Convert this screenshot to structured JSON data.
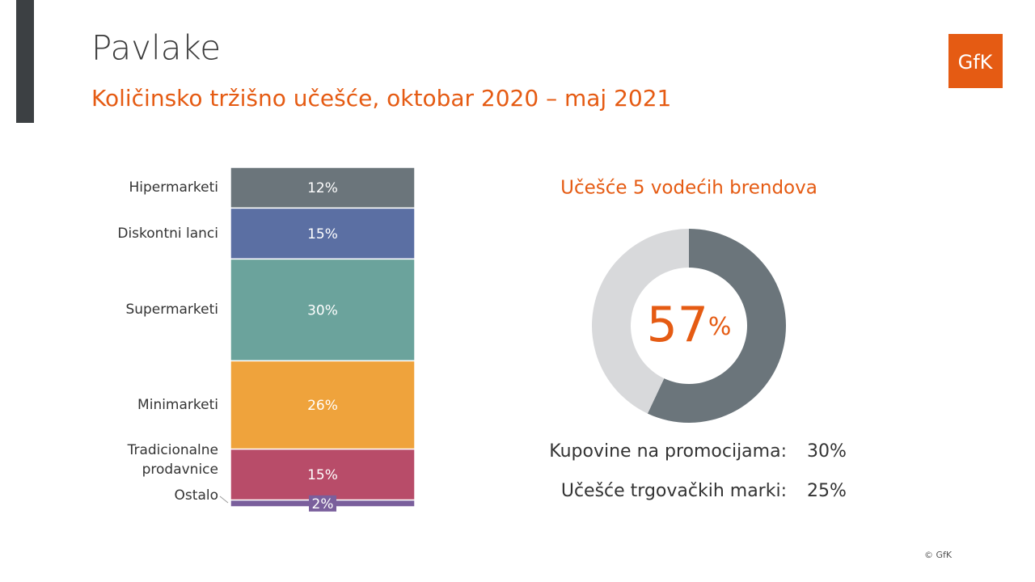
{
  "header": {
    "title": "Pavlake",
    "subtitle": "Količinsko tržišno učešće, oktobar 2020 – maj 2021"
  },
  "logo": "GfK",
  "chart_data": [
    {
      "type": "stacked-bar",
      "categories": [
        "Hipermarketi",
        "Diskontni lanci",
        "Supermarketi",
        "Minimarketi",
        "Tradicionalne prodavnice",
        "Ostalo"
      ],
      "values": [
        12,
        15,
        30,
        26,
        15,
        2
      ],
      "value_labels": [
        "12%",
        "15%",
        "30%",
        "26%",
        "15%",
        "2%"
      ],
      "colors": [
        "#6b757b",
        "#5b6fa3",
        "#6ba39c",
        "#efa33c",
        "#b84c69",
        "#7a5f9c"
      ]
    },
    {
      "type": "donut",
      "title": "Učešće 5 vodećih brendova",
      "values": [
        57,
        43
      ],
      "value_labels": [
        "57%",
        null
      ],
      "colors": [
        "#6b757b",
        "#d8d9db"
      ]
    }
  ],
  "stats": [
    {
      "label": "Kupovine na promocijama:",
      "value": "30%"
    },
    {
      "label": "Učešće trgovačkih marki:",
      "value": "25%"
    }
  ],
  "footer": "© GfK"
}
